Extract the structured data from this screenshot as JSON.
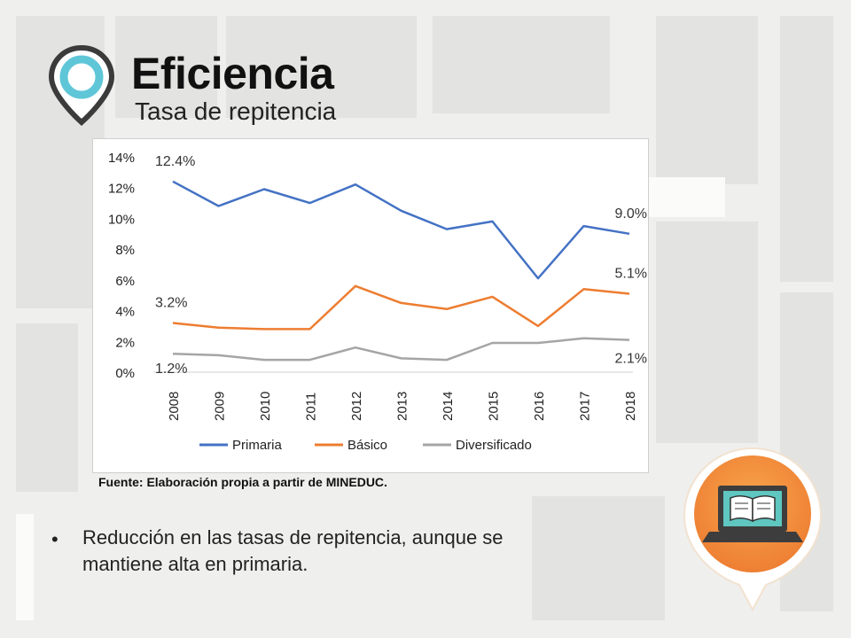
{
  "slide": {
    "title": "Eficiencia",
    "subtitle": "Tasa de repitencia",
    "source": "Fuente: Elaboración propia a partir de MINEDUC.",
    "bullet": "Reducción en las tasas de repitencia, aunque se mantiene alta en primaria.",
    "icons": {
      "pin": "location-pin-icon",
      "laptop": "laptop-book-icon"
    }
  },
  "colors": {
    "primaria": "#4472c4",
    "basico": "#ed7d31",
    "diversificado": "#a5a5a5",
    "pin_ring": "#5fc6d8",
    "badge_orange": "#f08a3c"
  },
  "chart_data": {
    "type": "line",
    "title": "",
    "xlabel": "",
    "ylabel": "",
    "ylim": [
      0,
      14
    ],
    "yticks": [
      0,
      2,
      4,
      6,
      8,
      10,
      12,
      14
    ],
    "ytick_labels": [
      "0%",
      "2%",
      "4%",
      "6%",
      "8%",
      "10%",
      "12%",
      "14%"
    ],
    "categories": [
      "2008",
      "2009",
      "2010",
      "2011",
      "2012",
      "2013",
      "2014",
      "2015",
      "2016",
      "2017",
      "2018"
    ],
    "series": [
      {
        "name": "Primaria",
        "values": [
          12.4,
          10.8,
          11.9,
          11.0,
          12.2,
          10.5,
          9.3,
          9.8,
          6.1,
          9.5,
          9.0
        ]
      },
      {
        "name": "Básico",
        "values": [
          3.2,
          2.9,
          2.8,
          2.8,
          5.6,
          4.5,
          4.1,
          4.9,
          3.0,
          5.4,
          5.1
        ]
      },
      {
        "name": "Diversificado",
        "values": [
          1.2,
          1.1,
          0.8,
          0.8,
          1.6,
          0.9,
          0.8,
          1.9,
          1.9,
          2.2,
          2.1
        ]
      }
    ],
    "data_labels": [
      {
        "series": 0,
        "index": 0,
        "text": "12.4%"
      },
      {
        "series": 0,
        "index": 10,
        "text": "9.0%"
      },
      {
        "series": 1,
        "index": 0,
        "text": "3.2%"
      },
      {
        "series": 1,
        "index": 10,
        "text": "5.1%"
      },
      {
        "series": 2,
        "index": 0,
        "text": "1.2%"
      },
      {
        "series": 2,
        "index": 10,
        "text": "2.1%"
      }
    ],
    "legend": [
      "Primaria",
      "Básico",
      "Diversificado"
    ],
    "legend_position": "bottom",
    "grid": false
  }
}
